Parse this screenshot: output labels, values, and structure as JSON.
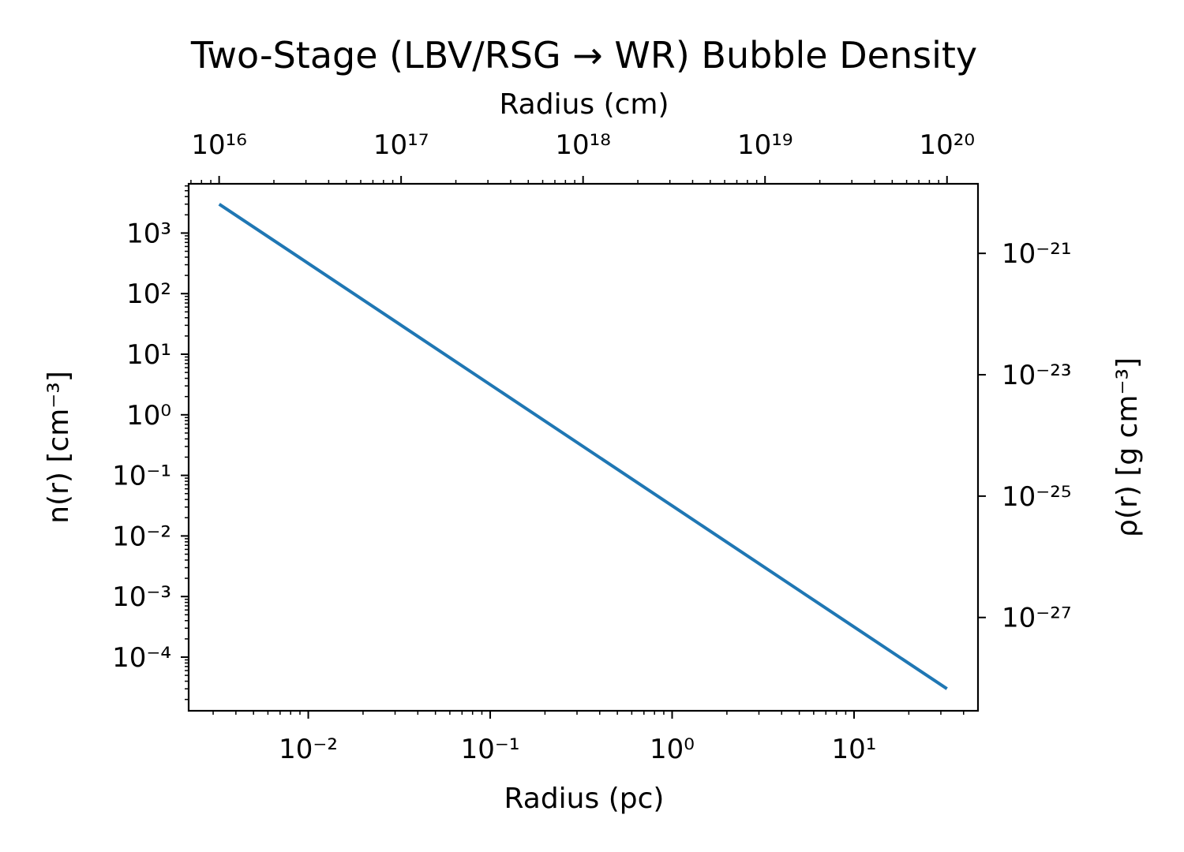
{
  "chart_data": {
    "type": "line",
    "title": "Two-Stage (LBV/RSG → WR) Bubble Density",
    "xlabel": "Radius (pc)",
    "x2label": "Radius (cm)",
    "ylabel": "n(r) [cm⁻³]",
    "y2label": "ρ(r) [g cm⁻³]",
    "xscale": "log",
    "yscale": "log",
    "xlim": [
      0.0022,
      48
    ],
    "ylim": [
      1.3e-05,
      6500
    ],
    "x2lim": [
      6800000000000000.0,
      1.48e+20
    ],
    "y2lim": [
      2.9e-29,
      1.4e-20
    ],
    "x_ticks": [
      {
        "value": 0.01,
        "label": "10⁻²"
      },
      {
        "value": 0.1,
        "label": "10⁻¹"
      },
      {
        "value": 1,
        "label": "10⁰"
      },
      {
        "value": 10,
        "label": "10¹"
      }
    ],
    "x2_ticks": [
      {
        "value": 1e+16,
        "label": "10¹⁶"
      },
      {
        "value": 1e+17,
        "label": "10¹⁷"
      },
      {
        "value": 1e+18,
        "label": "10¹⁸"
      },
      {
        "value": 1e+19,
        "label": "10¹⁹"
      },
      {
        "value": 1e+20,
        "label": "10²⁰"
      }
    ],
    "y_ticks": [
      {
        "value": 0.0001,
        "label": "10⁻⁴"
      },
      {
        "value": 0.001,
        "label": "10⁻³"
      },
      {
        "value": 0.01,
        "label": "10⁻²"
      },
      {
        "value": 0.1,
        "label": "10⁻¹"
      },
      {
        "value": 1,
        "label": "10⁰"
      },
      {
        "value": 10,
        "label": "10¹"
      },
      {
        "value": 100,
        "label": "10²"
      },
      {
        "value": 1000,
        "label": "10³"
      }
    ],
    "y2_ticks": [
      {
        "value": 1e-27,
        "label": "10⁻²⁷"
      },
      {
        "value": 1e-25,
        "label": "10⁻²⁵"
      },
      {
        "value": 1e-23,
        "label": "10⁻²³"
      },
      {
        "value": 1e-21,
        "label": "10⁻²¹"
      }
    ],
    "grid": false,
    "series": [
      {
        "color": "#1f77b4",
        "x": [
          0.00324,
          0.01,
          0.1,
          1,
          10,
          32.4
        ],
        "y": [
          3000,
          315,
          3.15,
          0.0315,
          0.000315,
          3e-05
        ]
      }
    ]
  }
}
